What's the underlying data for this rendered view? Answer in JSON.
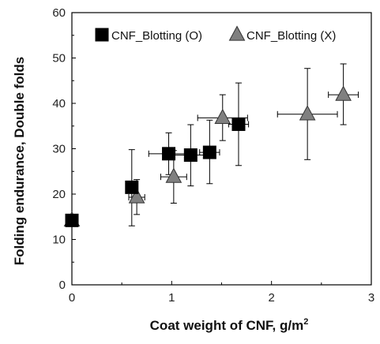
{
  "chart_data": {
    "type": "scatter",
    "xlabel": "Coat weight of CNF, g/m",
    "xlabel_superscript": "2",
    "ylabel": "Folding endurance, Double folds",
    "xlim": [
      0,
      3
    ],
    "ylim": [
      0,
      60
    ],
    "xticks": [
      "0",
      "1",
      "2",
      "3"
    ],
    "yticks": [
      "0",
      "10",
      "20",
      "30",
      "40",
      "50",
      "60"
    ],
    "grid": false,
    "legend_position": "top",
    "series": [
      {
        "name": "CNF_Blotting (O)",
        "marker": "square",
        "color": "#000000",
        "points": [
          {
            "x": 0.0,
            "y": 14.2,
            "yerr_low": 14.2,
            "yerr_high": 14.2,
            "xerr": 0.0
          },
          {
            "x": 0.6,
            "y": 21.5,
            "yerr_low": 13.0,
            "yerr_high": 29.8,
            "xerr": 0.06
          },
          {
            "x": 0.97,
            "y": 28.9,
            "yerr_low": 24.3,
            "yerr_high": 33.5,
            "xerr": 0.2
          },
          {
            "x": 1.19,
            "y": 28.6,
            "yerr_low": 21.8,
            "yerr_high": 35.3,
            "xerr": 0.2
          },
          {
            "x": 1.38,
            "y": 29.2,
            "yerr_low": 22.3,
            "yerr_high": 36.3,
            "xerr": 0.1
          },
          {
            "x": 1.67,
            "y": 35.4,
            "yerr_low": 26.3,
            "yerr_high": 44.5,
            "xerr": 0.1
          }
        ]
      },
      {
        "name": "CNF_Blotting (X)",
        "marker": "triangle",
        "color": "#808080",
        "points": [
          {
            "x": 0.0,
            "y": 14.2,
            "yerr_low": 14.2,
            "yerr_high": 14.2,
            "xerr": 0.0
          },
          {
            "x": 0.65,
            "y": 19.3,
            "yerr_low": 15.5,
            "yerr_high": 23.2,
            "xerr": 0.08
          },
          {
            "x": 1.02,
            "y": 23.8,
            "yerr_low": 18.0,
            "yerr_high": 29.6,
            "xerr": 0.13
          },
          {
            "x": 1.51,
            "y": 36.8,
            "yerr_low": 31.8,
            "yerr_high": 41.9,
            "xerr": 0.25
          },
          {
            "x": 2.36,
            "y": 37.6,
            "yerr_low": 27.6,
            "yerr_high": 47.7,
            "xerr": 0.3
          },
          {
            "x": 2.72,
            "y": 41.9,
            "yerr_low": 35.3,
            "yerr_high": 48.7,
            "xerr": 0.15
          }
        ]
      }
    ]
  }
}
